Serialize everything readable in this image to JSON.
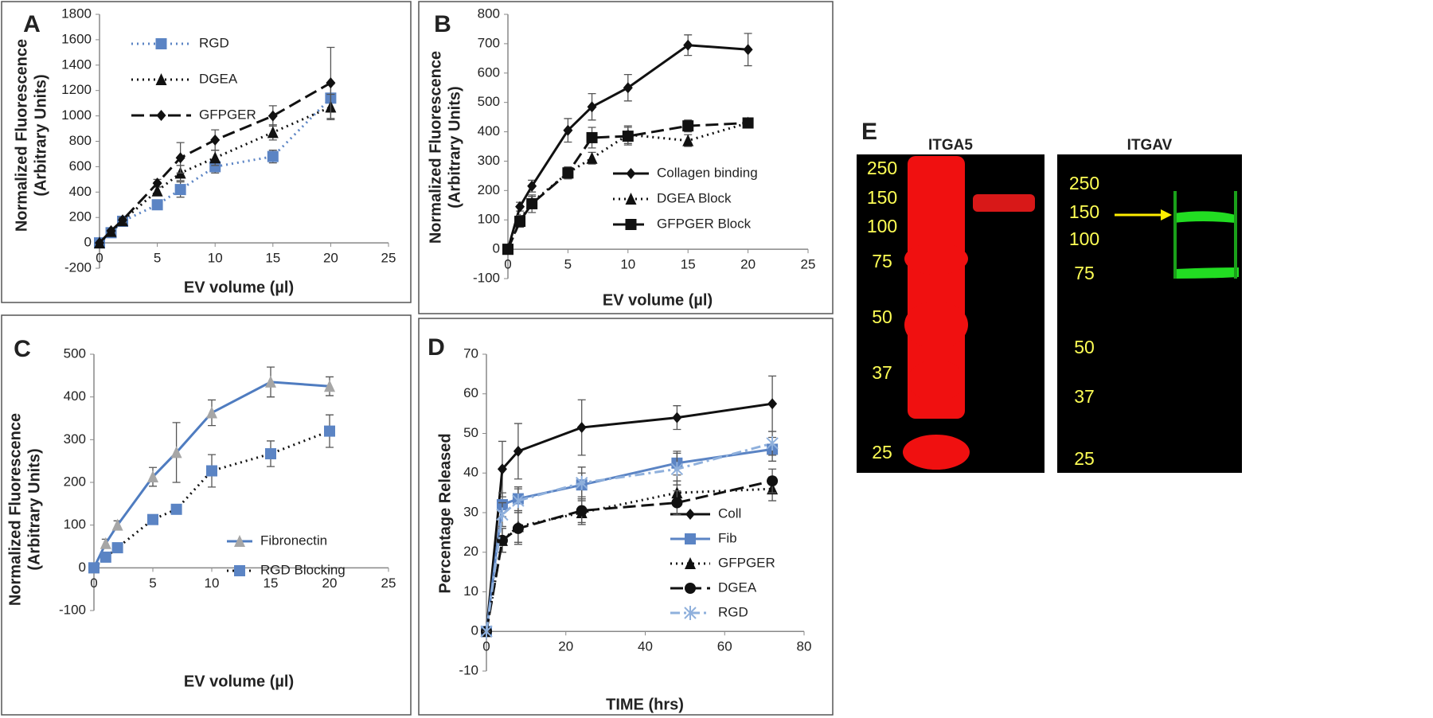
{
  "chart_data": [
    {
      "type": "line",
      "panel": "A",
      "xlabel": "EV volume (µl)",
      "ylabel": [
        "Normalized Fluorescence",
        "(Arbitrary Units)"
      ],
      "x": [
        0,
        1,
        2,
        5,
        7,
        10,
        15,
        20
      ],
      "xlim": [
        0,
        25
      ],
      "xticks": [
        0,
        5,
        10,
        15,
        20,
        25
      ],
      "ylim": [
        -200,
        1800
      ],
      "yticks": [
        -200,
        0,
        200,
        400,
        600,
        800,
        1000,
        1200,
        1400,
        1600,
        1800
      ],
      "grid": false,
      "legend": "upper left",
      "series": [
        {
          "name": "RGD",
          "color": "#5b84c4",
          "dash": "dotted",
          "marker": "square",
          "values": [
            0,
            80,
            170,
            300,
            420,
            600,
            680,
            1140
          ],
          "errors": [
            0,
            10,
            20,
            30,
            60,
            50,
            50,
            110
          ]
        },
        {
          "name": "DGEA",
          "color": "#111111",
          "dash": "dotted",
          "marker": "triangle",
          "values": [
            0,
            90,
            175,
            410,
            550,
            670,
            870,
            1070
          ],
          "errors": [
            0,
            10,
            20,
            30,
            60,
            60,
            60,
            100
          ]
        },
        {
          "name": "GFPGER",
          "color": "#111111",
          "dash": "dashed",
          "marker": "diamond",
          "values": [
            0,
            95,
            180,
            470,
            670,
            810,
            1000,
            1260
          ],
          "errors": [
            0,
            10,
            20,
            30,
            120,
            80,
            80,
            280
          ]
        }
      ]
    },
    {
      "type": "line",
      "panel": "B",
      "xlabel": "EV volume (µl)",
      "ylabel": [
        "Normalized Fluorescence",
        "(Arbitrary Units)"
      ],
      "x": [
        0,
        1,
        2,
        5,
        7,
        10,
        15,
        20
      ],
      "xlim": [
        0,
        25
      ],
      "xticks": [
        0,
        5,
        10,
        15,
        20,
        25
      ],
      "ylim": [
        -100,
        800
      ],
      "yticks": [
        -100,
        0,
        100,
        200,
        300,
        400,
        500,
        600,
        700,
        800
      ],
      "grid": false,
      "legend": "lower right",
      "series": [
        {
          "name": "Collagen binding",
          "color": "#111111",
          "dash": "solid",
          "marker": "diamond",
          "values": [
            0,
            145,
            215,
            405,
            485,
            550,
            695,
            680
          ],
          "errors": [
            0,
            15,
            20,
            40,
            45,
            45,
            35,
            55
          ]
        },
        {
          "name": "DGEA Block",
          "color": "#111111",
          "dash": "dotted",
          "marker": "triangle",
          "values": [
            0,
            100,
            160,
            260,
            310,
            390,
            370,
            430
          ],
          "errors": [
            0,
            15,
            20,
            20,
            20,
            30,
            20,
            15
          ]
        },
        {
          "name": "GFPGER Block",
          "color": "#111111",
          "dash": "dashed",
          "marker": "square",
          "values": [
            0,
            95,
            155,
            260,
            380,
            385,
            420,
            430
          ],
          "errors": [
            0,
            20,
            30,
            20,
            35,
            30,
            20,
            15
          ]
        }
      ]
    },
    {
      "type": "line",
      "panel": "C",
      "xlabel": "EV volume (µl)",
      "ylabel": [
        "Normalized Fluorescence",
        "(Arbitrary Units)"
      ],
      "x": [
        0,
        1,
        2,
        5,
        7,
        10,
        15,
        20
      ],
      "xlim": [
        0,
        25
      ],
      "xticks": [
        0,
        5,
        10,
        15,
        20,
        25
      ],
      "ylim": [
        -100,
        500
      ],
      "yticks": [
        -100,
        0,
        100,
        200,
        300,
        400,
        500
      ],
      "grid": false,
      "legend": "lower right",
      "series": [
        {
          "name": "Fibronectin",
          "color": "#4f7cc0",
          "dash": "solid",
          "marker": "triangle",
          "marker_color": "#a6a6a6",
          "values": [
            0,
            57,
            100,
            213,
            270,
            363,
            435,
            425
          ],
          "errors": [
            0,
            10,
            10,
            22,
            70,
            30,
            35,
            22
          ]
        },
        {
          "name": "RGD Blocking",
          "color": "#111111",
          "dash": "dotted",
          "marker": "square",
          "marker_color": "#5b84c4",
          "values": [
            0,
            25,
            47,
            113,
            137,
            227,
            267,
            320
          ],
          "errors": [
            0,
            5,
            5,
            8,
            8,
            38,
            30,
            38
          ]
        }
      ]
    },
    {
      "type": "line",
      "panel": "D",
      "xlabel": "TIME (hrs)",
      "ylabel": [
        "Percentage Released"
      ],
      "x": [
        0,
        4,
        8,
        24,
        48,
        72
      ],
      "xlim": [
        0,
        80
      ],
      "xticks": [
        0,
        20,
        40,
        60,
        80
      ],
      "ylim": [
        -10,
        70
      ],
      "yticks": [
        -10,
        0,
        10,
        20,
        30,
        40,
        50,
        60,
        70
      ],
      "grid": false,
      "legend": "lower right",
      "series": [
        {
          "name": "Coll",
          "color": "#111111",
          "dash": "solid",
          "marker": "diamond",
          "values": [
            0,
            41,
            45.5,
            51.5,
            54,
            57.5
          ],
          "errors": [
            0,
            7,
            7,
            7,
            3,
            7
          ]
        },
        {
          "name": "Fib",
          "color": "#5b84c4",
          "dash": "solid",
          "marker": "square",
          "values": [
            0,
            32,
            33.5,
            37,
            42.5,
            46
          ],
          "errors": [
            0,
            3,
            3,
            3,
            3,
            3
          ]
        },
        {
          "name": "GFPGER",
          "color": "#111111",
          "dash": "dotted",
          "marker": "triangle",
          "values": [
            0,
            23,
            26.5,
            30,
            35,
            36
          ],
          "errors": [
            0,
            3,
            4,
            3,
            3,
            3
          ]
        },
        {
          "name": "DGEA",
          "color": "#111111",
          "dash": "dashed",
          "marker": "circle",
          "values": [
            0,
            23,
            26,
            30.5,
            32.5,
            38
          ],
          "errors": [
            0,
            3,
            4,
            3,
            3,
            3
          ]
        },
        {
          "name": "RGD",
          "color": "#8fb0dc",
          "dash": "dashdot",
          "marker": "x",
          "values": [
            0,
            29.5,
            33,
            37.5,
            41,
            47.5
          ],
          "errors": [
            0,
            3,
            3,
            4,
            4,
            3
          ]
        }
      ]
    }
  ],
  "blot": {
    "panel": "E",
    "panels": [
      {
        "title": "ITGA5",
        "markers": [
          250,
          150,
          100,
          75,
          50,
          37,
          25
        ]
      },
      {
        "title": "ITGAV",
        "markers": [
          250,
          150,
          100,
          75,
          50,
          37,
          25
        ]
      }
    ]
  }
}
